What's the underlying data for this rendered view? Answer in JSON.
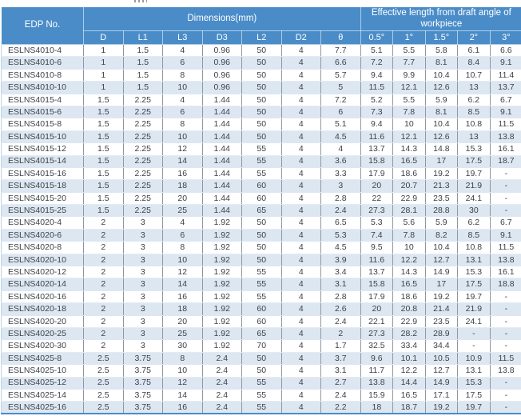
{
  "colors": {
    "header_bg": "#4a8cc8",
    "header_text": "#ffffff",
    "stripe_bg": "#dde7f2",
    "body_text": "#3d4248",
    "accent_border": "#4a8cc8"
  },
  "table": {
    "header": {
      "edp_label": "EDP No.",
      "dimensions_group_label": "Dimensions(mm)",
      "effective_group_label": "Effective length from draft angle of workpiece",
      "dim_cols": [
        "D",
        "L1",
        "L3",
        "D3",
        "L2",
        "D2",
        "θ"
      ],
      "eff_cols": [
        "0.5°",
        "1°",
        "1.5°",
        "2°",
        "3°"
      ]
    },
    "rows": [
      [
        "ESLNS4010-4",
        "1",
        "1.5",
        "4",
        "0.96",
        "50",
        "4",
        "7.7",
        "5.1",
        "5.5",
        "5.8",
        "6.1",
        "6.6"
      ],
      [
        "ESLNS4010-6",
        "1",
        "1.5",
        "6",
        "0.96",
        "50",
        "4",
        "6.6",
        "7.2",
        "7.7",
        "8.1",
        "8.4",
        "9.1"
      ],
      [
        "ESLNS4010-8",
        "1",
        "1.5",
        "8",
        "0.96",
        "50",
        "4",
        "5.7",
        "9.4",
        "9.9",
        "10.4",
        "10.7",
        "11.4"
      ],
      [
        "ESLNS4010-10",
        "1",
        "1.5",
        "10",
        "0.96",
        "50",
        "4",
        "5",
        "11.5",
        "12.1",
        "12.6",
        "13",
        "13.7"
      ],
      [
        "ESLNS4015-4",
        "1.5",
        "2.25",
        "4",
        "1.44",
        "50",
        "4",
        "7.2",
        "5.2",
        "5.5",
        "5.9",
        "6.2",
        "6.7"
      ],
      [
        "ESLNS4015-6",
        "1.5",
        "2.25",
        "6",
        "1.44",
        "50",
        "4",
        "6",
        "7.3",
        "7.8",
        "8.1",
        "8.5",
        "9.1"
      ],
      [
        "ESLNS4015-8",
        "1.5",
        "2.25",
        "8",
        "1.44",
        "50",
        "4",
        "5.1",
        "9.4",
        "10",
        "10.4",
        "10.8",
        "11.5"
      ],
      [
        "ESLNS4015-10",
        "1.5",
        "2.25",
        "10",
        "1.44",
        "50",
        "4",
        "4.5",
        "11.6",
        "12.1",
        "12.6",
        "13",
        "13.8"
      ],
      [
        "ESLNS4015-12",
        "1.5",
        "2.25",
        "12",
        "1.44",
        "55",
        "4",
        "4",
        "13.7",
        "14.3",
        "14.8",
        "15.3",
        "16.1"
      ],
      [
        "ESLNS4015-14",
        "1.5",
        "2.25",
        "14",
        "1.44",
        "55",
        "4",
        "3.6",
        "15.8",
        "16.5",
        "17",
        "17.5",
        "18.7"
      ],
      [
        "ESLNS4015-16",
        "1.5",
        "2.25",
        "16",
        "1.44",
        "55",
        "4",
        "3.3",
        "17.9",
        "18.6",
        "19.2",
        "19.7",
        "-"
      ],
      [
        "ESLNS4015-18",
        "1.5",
        "2.25",
        "18",
        "1.44",
        "60",
        "4",
        "3",
        "20",
        "20.7",
        "21.3",
        "21.9",
        "-"
      ],
      [
        "ESLNS4015-20",
        "1.5",
        "2.25",
        "20",
        "1.44",
        "60",
        "4",
        "2.8",
        "22",
        "22.9",
        "23.5",
        "24.1",
        "-"
      ],
      [
        "ESLNS4015-25",
        "1.5",
        "2.25",
        "25",
        "1.44",
        "65",
        "4",
        "2.4",
        "27.3",
        "28.1",
        "28.8",
        "30",
        "-"
      ],
      [
        "ESLNS4020-4",
        "2",
        "3",
        "4",
        "1.92",
        "50",
        "4",
        "6.5",
        "5.3",
        "5.6",
        "5.9",
        "6.2",
        "6.7"
      ],
      [
        "ESLNS4020-6",
        "2",
        "3",
        "6",
        "1.92",
        "50",
        "4",
        "5.3",
        "7.4",
        "7.8",
        "8.2",
        "8.5",
        "9.1"
      ],
      [
        "ESLNS4020-8",
        "2",
        "3",
        "8",
        "1.92",
        "50",
        "4",
        "4.5",
        "9.5",
        "10",
        "10.4",
        "10.8",
        "11.5"
      ],
      [
        "ESLNS4020-10",
        "2",
        "3",
        "10",
        "1.92",
        "50",
        "4",
        "3.9",
        "11.6",
        "12.2",
        "12.7",
        "13.1",
        "13.8"
      ],
      [
        "ESLNS4020-12",
        "2",
        "3",
        "12",
        "1.92",
        "55",
        "4",
        "3.4",
        "13.7",
        "14.3",
        "14.9",
        "15.3",
        "16.1"
      ],
      [
        "ESLNS4020-14",
        "2",
        "3",
        "14",
        "1.92",
        "55",
        "4",
        "3.1",
        "15.8",
        "16.5",
        "17",
        "17.5",
        "18.8"
      ],
      [
        "ESLNS4020-16",
        "2",
        "3",
        "16",
        "1.92",
        "55",
        "4",
        "2.8",
        "17.9",
        "18.6",
        "19.2",
        "19.7",
        "-"
      ],
      [
        "ESLNS4020-18",
        "2",
        "3",
        "18",
        "1.92",
        "60",
        "4",
        "2.6",
        "20",
        "20.8",
        "21.4",
        "21.9",
        "-"
      ],
      [
        "ESLNS4020-20",
        "2",
        "3",
        "20",
        "1.92",
        "60",
        "4",
        "2.4",
        "22.1",
        "22.9",
        "23.5",
        "24.1",
        "-"
      ],
      [
        "ESLNS4020-25",
        "2",
        "3",
        "25",
        "1.92",
        "65",
        "4",
        "2",
        "27.3",
        "28.2",
        "28.9",
        "-",
        "-"
      ],
      [
        "ESLNS4020-30",
        "2",
        "3",
        "30",
        "1.92",
        "70",
        "4",
        "1.7",
        "32.5",
        "33.4",
        "34.4",
        "-",
        "-"
      ],
      [
        "ESLNS4025-8",
        "2.5",
        "3.75",
        "8",
        "2.4",
        "50",
        "4",
        "3.7",
        "9.6",
        "10.1",
        "10.5",
        "10.9",
        "11.5"
      ],
      [
        "ESLNS4025-10",
        "2.5",
        "3.75",
        "10",
        "2.4",
        "50",
        "4",
        "3.1",
        "11.7",
        "12.2",
        "12.7",
        "13.1",
        "13.8"
      ],
      [
        "ESLNS4025-12",
        "2.5",
        "3.75",
        "12",
        "2.4",
        "55",
        "4",
        "2.7",
        "13.8",
        "14.4",
        "14.9",
        "15.3",
        "-"
      ],
      [
        "ESLNS4025-14",
        "2.5",
        "3.75",
        "14",
        "2.4",
        "55",
        "4",
        "2.4",
        "15.9",
        "16.5",
        "17.1",
        "17.5",
        "-"
      ],
      [
        "ESLNS4025-16",
        "2.5",
        "3.75",
        "16",
        "2.4",
        "55",
        "4",
        "2.2",
        "18",
        "18.7",
        "19.2",
        "19.7",
        "-"
      ]
    ]
  }
}
